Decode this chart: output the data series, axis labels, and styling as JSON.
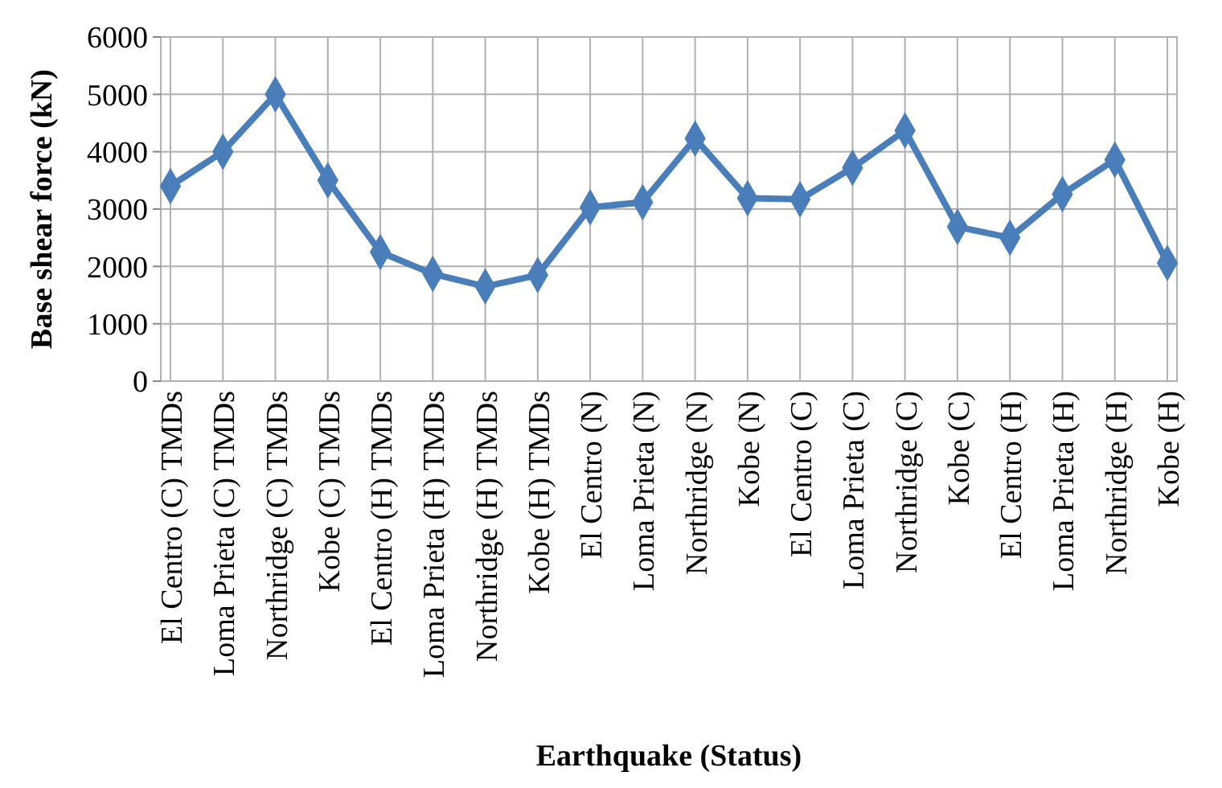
{
  "chart_data": {
    "type": "line",
    "xlabel": "Earthquake (Status)",
    "ylabel": "Base shear force (kN)",
    "categories": [
      "El Centro (C) TMDs",
      "Loma Prieta (C) TMDs",
      "Northridge (C) TMDs",
      "Kobe (C) TMDs",
      "El Centro (H) TMDs",
      "Loma Prieta (H) TMDs",
      "Northridge (H) TMDs",
      "Kobe (H) TMDs",
      "El Centro (N)",
      "Loma Prieta (N)",
      "Northridge (N)",
      "Kobe (N)",
      "El Centro (C)",
      "Loma Prieta (C)",
      "Northridge (C)",
      "Kobe (C)",
      "El Centro (H)",
      "Loma Prieta (H)",
      "Northridge (H)",
      "Kobe (H)"
    ],
    "series": [
      {
        "color": "#4a7ebb",
        "values": [
          3400,
          4000,
          5000,
          3500,
          2250,
          1870,
          1650,
          1850,
          3030,
          3120,
          4230,
          3190,
          3170,
          3720,
          4370,
          2690,
          2500,
          3260,
          3860,
          2060
        ]
      }
    ],
    "ylim": [
      0,
      6000
    ],
    "yticks": [
      0,
      1000,
      2000,
      3000,
      4000,
      5000,
      6000
    ],
    "grid": true,
    "marker": "diamond",
    "line_style": "solid"
  }
}
